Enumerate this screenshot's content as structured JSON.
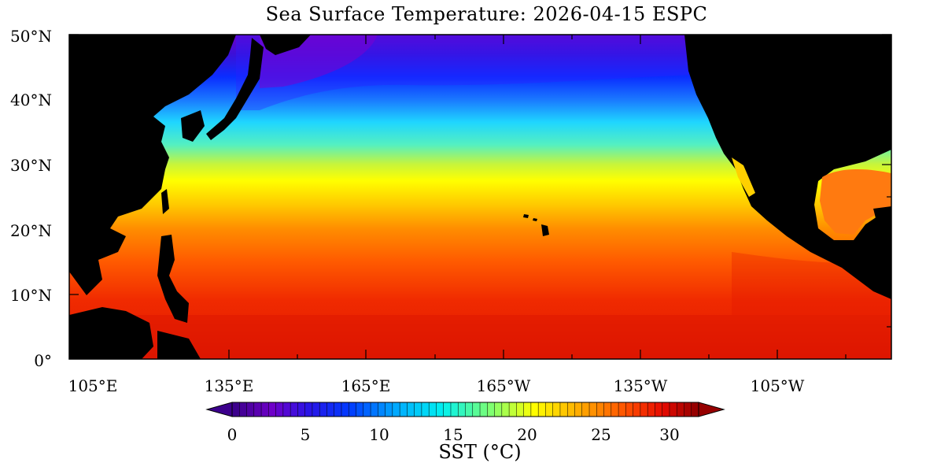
{
  "title": "Sea Surface Temperature: 2026-04-15 ESPC",
  "lat_labels": [
    "50°N",
    "40°N",
    "30°N",
    "20°N",
    "10°N",
    "0°"
  ],
  "lon_labels": [
    "105°E",
    "135°E",
    "165°E",
    "165°W",
    "135°W",
    "105°W"
  ],
  "colorbar": {
    "tick_labels": [
      "0",
      "5",
      "10",
      "15",
      "20",
      "25",
      "30"
    ],
    "title": "SST (°C)",
    "range": [
      0,
      32
    ]
  },
  "colors": {
    "land": "#000000",
    "cold": "#4b0082",
    "cool": "#0000ff",
    "mid": "#00e5ff",
    "warm": "#ffff00",
    "hot": "#ff6600",
    "hottest": "#d40000"
  }
}
